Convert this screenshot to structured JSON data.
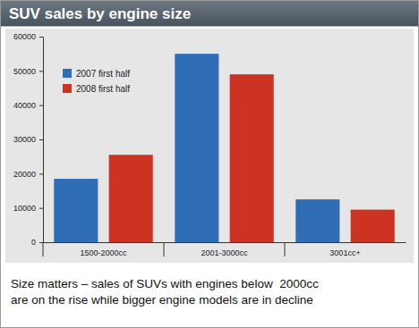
{
  "chart_data": {
    "type": "bar",
    "title": "SUV sales by engine size",
    "categories": [
      "1500-2000cc",
      "2001-3000cc",
      "3001cc+"
    ],
    "series": [
      {
        "name": "2007 first half",
        "color": "#2f6db6",
        "values": [
          18500,
          55000,
          12500
        ]
      },
      {
        "name": "2008 first half",
        "color": "#cc3322",
        "values": [
          25500,
          49000,
          9500
        ]
      }
    ],
    "ylim": [
      0,
      60000
    ],
    "yticks": [
      0,
      10000,
      20000,
      30000,
      40000,
      50000,
      60000
    ],
    "grid": false,
    "legend": "upper left",
    "annotations": [
      "Size matters – sales of SUVs with engines below  2000cc",
      "are on the rise while bigger engine models are in decline"
    ]
  }
}
